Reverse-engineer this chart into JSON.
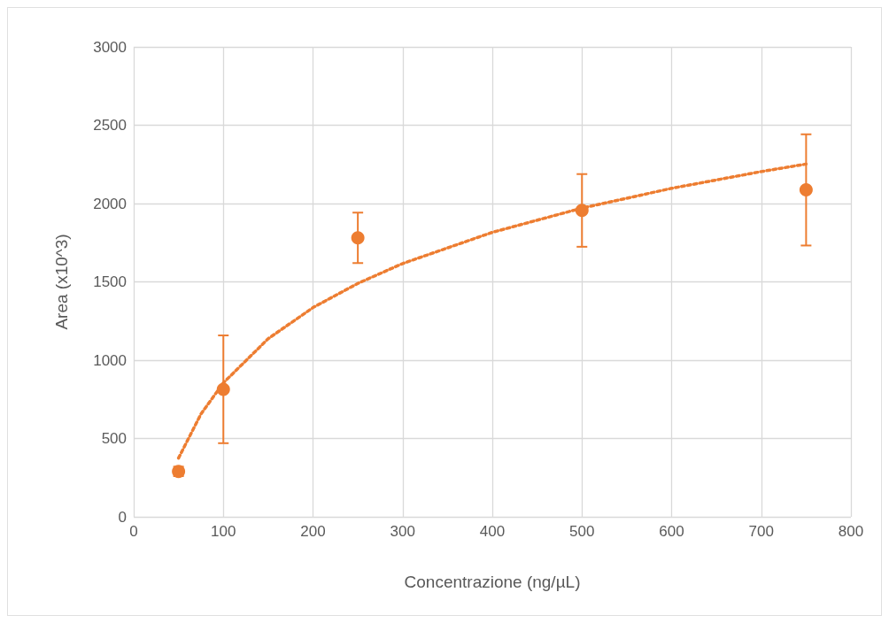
{
  "chart_data": {
    "type": "scatter",
    "xlabel": "Concentrazione (ng/µL)",
    "ylabel": "Area (x10^3)",
    "xlim": [
      0,
      800
    ],
    "xticks": [
      0,
      100,
      200,
      300,
      400,
      500,
      600,
      700,
      800
    ],
    "ylim": [
      0,
      3000
    ],
    "yticks": [
      0,
      500,
      1000,
      1500,
      2000,
      2500,
      3000
    ],
    "grid": true,
    "marker": "circle",
    "series": [
      {
        "color": "#ed7d31",
        "x": [
          50,
          100,
          250,
          500,
          750
        ],
        "values": [
          290,
          814,
          1781,
          1956,
          2087
        ],
        "errors": [
          30,
          344,
          161,
          232,
          355
        ]
      },
      {
        "type": "line",
        "color": "#ed7d31",
        "line_style": "dotted",
        "marker": "none",
        "x": [
          50,
          75,
          100,
          150,
          200,
          250,
          300,
          400,
          500,
          600,
          700,
          750
        ],
        "values": [
          375,
          656,
          855,
          1137,
          1336,
          1490,
          1617,
          1816,
          1971,
          2097,
          2204,
          2252
        ]
      }
    ]
  }
}
